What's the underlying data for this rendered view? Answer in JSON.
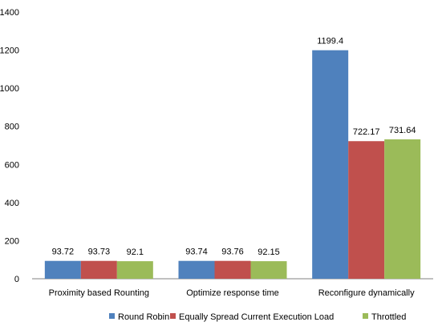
{
  "chart_data": {
    "type": "bar",
    "title": "",
    "xlabel": "",
    "ylabel": "",
    "categories": [
      "Proximity based Rounting",
      "Optimize response time",
      "Reconfigure dynamically"
    ],
    "series": [
      {
        "name": "Round Robin",
        "color": "#4F81BD",
        "values": [
          93.72,
          93.74,
          1199.4
        ]
      },
      {
        "name": "Equally Spread Current Execution Load",
        "color": "#C0504D",
        "values": [
          93.73,
          93.76,
          722.17
        ]
      },
      {
        "name": "Throttled",
        "color": "#9BBB59",
        "values": [
          92.1,
          92.15,
          731.64
        ]
      }
    ],
    "value_labels": [
      [
        "93.72",
        "93.73",
        "92.1"
      ],
      [
        "93.74",
        "93.76",
        "92.15"
      ],
      [
        "1199.4",
        "722.17",
        "731.64"
      ]
    ],
    "ylim": [
      0,
      1400
    ],
    "yticks": [
      0,
      200,
      400,
      600,
      800,
      1000,
      1200,
      1400
    ],
    "grid": false,
    "legend": "bottom"
  }
}
